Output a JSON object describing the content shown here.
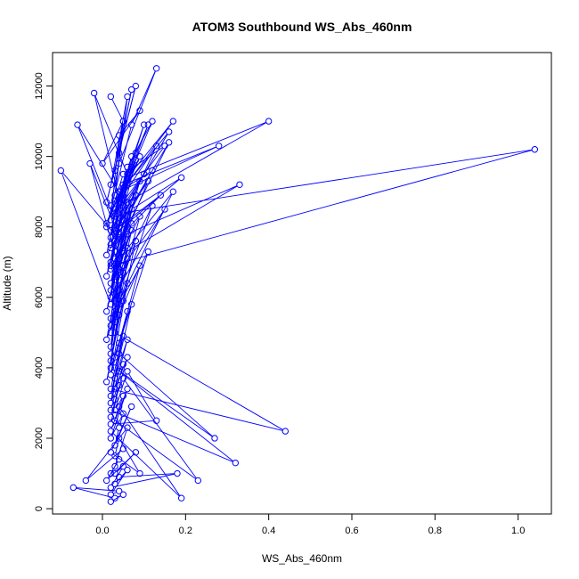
{
  "chart_data": {
    "type": "line",
    "title": "ATOM3 Southbound WS_Abs_460nm",
    "xlabel": "WS_Abs_460nm",
    "ylabel": "Altitude (m)",
    "xlim": [
      -0.12,
      1.08
    ],
    "ylim": [
      -150,
      12950
    ],
    "xticks": [
      0.0,
      0.2,
      0.4,
      0.6,
      0.8,
      1.0
    ],
    "xtick_labels": [
      "0.0",
      "0.2",
      "0.4",
      "0.6",
      "0.8",
      "1.0"
    ],
    "yticks": [
      0,
      2000,
      4000,
      6000,
      8000,
      10000,
      12000
    ],
    "ytick_labels": [
      "0",
      "2000",
      "4000",
      "6000",
      "8000",
      "10000",
      "12000"
    ],
    "marker": "open-circle",
    "line_color": "#0000ff",
    "grid": false,
    "legend": "none",
    "series": [
      {
        "x": [
          0.02,
          0.05,
          0.03,
          0.07,
          0.04,
          0.01,
          0.08,
          0.02,
          0.06,
          0.03,
          0.05,
          0.0,
          0.09,
          0.04,
          0.02,
          0.12,
          0.06,
          0.03,
          0.15,
          0.05,
          0.01,
          0.07,
          0.13,
          0.04,
          0.02,
          0.17,
          0.06,
          0.03,
          0.1,
          0.05,
          0.28,
          0.04,
          0.02,
          0.08,
          0.03,
          0.4,
          0.06,
          0.01,
          0.11,
          0.04,
          0.07,
          0.02,
          0.16,
          0.05,
          0.03,
          0.09,
          0.04,
          -0.02,
          0.06,
          0.02,
          0.13,
          0.05,
          0.03,
          0.19,
          0.07,
          0.01,
          0.04,
          0.12,
          0.02,
          0.05,
          -0.06,
          0.03,
          0.08,
          0.02,
          0.05,
          0.1,
          0.04,
          0.06,
          0.02,
          0.11,
          0.03,
          0.07,
          0.01,
          0.05,
          1.04,
          0.02,
          0.04,
          0.14,
          0.03,
          0.06,
          0.02,
          0.09,
          0.04,
          0.03,
          0.16,
          0.05,
          0.02,
          0.07,
          0.03,
          0.33,
          0.04,
          0.02,
          0.06,
          0.03,
          0.05,
          -0.1,
          0.02,
          0.07,
          0.04,
          0.01,
          0.08,
          0.03,
          0.05,
          0.02,
          0.17,
          0.04,
          0.06,
          0.03,
          0.02,
          0.09,
          0.05,
          -0.03,
          0.04,
          0.02,
          0.07,
          0.03,
          0.05,
          0.01,
          0.12,
          0.04,
          0.02,
          0.06,
          0.03,
          0.15,
          0.05,
          0.02,
          0.04,
          0.03,
          0.06,
          0.02,
          0.08,
          0.04,
          0.03,
          0.05,
          0.02,
          0.11,
          0.04,
          0.03,
          0.06,
          0.02,
          0.09,
          0.04,
          0.01,
          0.05,
          0.03,
          0.44,
          0.02,
          0.06,
          0.04,
          0.03,
          0.07,
          0.02,
          0.05,
          0.03,
          0.27,
          0.04,
          0.02,
          0.06,
          0.03,
          0.05,
          0.02,
          0.32,
          0.04,
          0.03,
          0.06,
          0.02,
          0.23,
          0.05,
          0.03,
          0.04,
          0.02,
          0.13,
          0.06,
          0.03,
          0.05,
          0.02,
          0.19,
          0.04,
          0.03,
          0.06,
          0.02,
          0.05,
          0.04,
          0.03,
          0.07,
          0.02,
          0.09,
          0.04,
          0.03,
          0.05,
          -0.04,
          0.06,
          0.03,
          0.02,
          0.04,
          0.01,
          0.08,
          0.03,
          0.05,
          0.02,
          0.18,
          0.04,
          0.03,
          0.06,
          0.02,
          0.04,
          -0.07,
          0.03,
          0.05,
          0.02
        ],
        "y": [
          11700,
          11000,
          9600,
          11900,
          10100,
          8700,
          12000,
          9200,
          11700,
          8900,
          11000,
          9800,
          11300,
          10600,
          8200,
          11000,
          9700,
          8400,
          10300,
          9500,
          8000,
          10900,
          12500,
          9800,
          8600,
          11000,
          9400,
          8300,
          10900,
          9200,
          10300,
          9000,
          7700,
          10100,
          8500,
          11000,
          9400,
          8100,
          10900,
          8700,
          10000,
          7900,
          10700,
          9100,
          8300,
          10000,
          8800,
          11800,
          9500,
          7500,
          10300,
          8900,
          7800,
          9400,
          8500,
          7200,
          9000,
          9600,
          7400,
          8800,
          10900,
          8200,
          9900,
          7000,
          8600,
          9500,
          8100,
          9200,
          6800,
          9300,
          7900,
          9700,
          6600,
          8400,
          10200,
          6900,
          8000,
          8900,
          7600,
          8700,
          6400,
          9300,
          7800,
          7300,
          10400,
          8200,
          6200,
          8700,
          7100,
          9200,
          7700,
          6000,
          8300,
          6800,
          7500,
          9600,
          5800,
          8100,
          7200,
          5600,
          8900,
          6900,
          7700,
          5400,
          9000,
          7100,
          7800,
          6600,
          5200,
          8300,
          7400,
          9800,
          6800,
          5000,
          7900,
          6500,
          7300,
          4800,
          8600,
          6700,
          4600,
          7400,
          6100,
          8500,
          6900,
          4400,
          6500,
          5900,
          7100,
          4200,
          7600,
          6200,
          5600,
          6700,
          4000,
          7300,
          5800,
          5300,
          6400,
          3800,
          6900,
          5500,
          3600,
          5900,
          5000,
          2200,
          3400,
          5600,
          4700,
          4300,
          5800,
          3200,
          4900,
          4000,
          2000,
          4400,
          3000,
          4800,
          3700,
          4100,
          2800,
          1300,
          3900,
          3400,
          4300,
          2600,
          800,
          3700,
          3100,
          3500,
          2400,
          2500,
          3900,
          2800,
          3200,
          2200,
          300,
          2900,
          2500,
          3400,
          2000,
          2700,
          2300,
          1800,
          2900,
          1600,
          1000,
          2000,
          1500,
          1700,
          800,
          2300,
          1200,
          1000,
          1400,
          800,
          1600,
          1000,
          1200,
          600,
          1000,
          900,
          700,
          1100,
          400,
          500,
          600,
          300,
          400,
          200
        ]
      }
    ]
  }
}
